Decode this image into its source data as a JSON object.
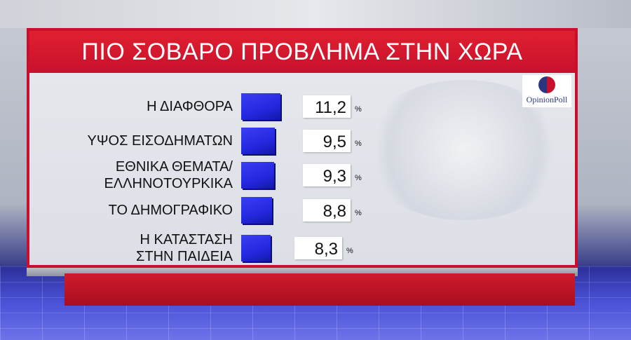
{
  "chart_data": {
    "type": "bar",
    "orientation": "horizontal",
    "title": "ΠΙΟ ΣΟΒΑΡΟ ΠΡΟΒΛΗΜΑ ΣΤΗΝ ΧΩΡΑ",
    "categories": [
      [
        "Η ΔΙΑΦΘΟΡΑ"
      ],
      [
        "ΥΨΟΣ ΕΙΣΟΔΗΜΑΤΩΝ"
      ],
      [
        "ΕΘΝΙΚΑ ΘΕΜΑΤΑ/",
        "ΕΛΛΗΝΟΤΟΥΡΚΙΚΑ"
      ],
      [
        "ΤΟ ΔΗΜΟΓΡΑΦΙΚΟ"
      ],
      [
        "Η ΚΑΤΑΣΤΑΣΗ",
        "ΣΤΗΝ ΠΑΙΔΕΙΑ"
      ]
    ],
    "values": [
      11.2,
      9.5,
      9.3,
      8.8,
      8.3
    ],
    "value_labels": [
      "11,2",
      "9,5",
      "9,3",
      "8,8",
      "8,3"
    ],
    "unit": "%",
    "bar_color": "#2328e0",
    "accent_color": "#c8102e"
  },
  "logo": {
    "text": "OpinionPoll"
  }
}
